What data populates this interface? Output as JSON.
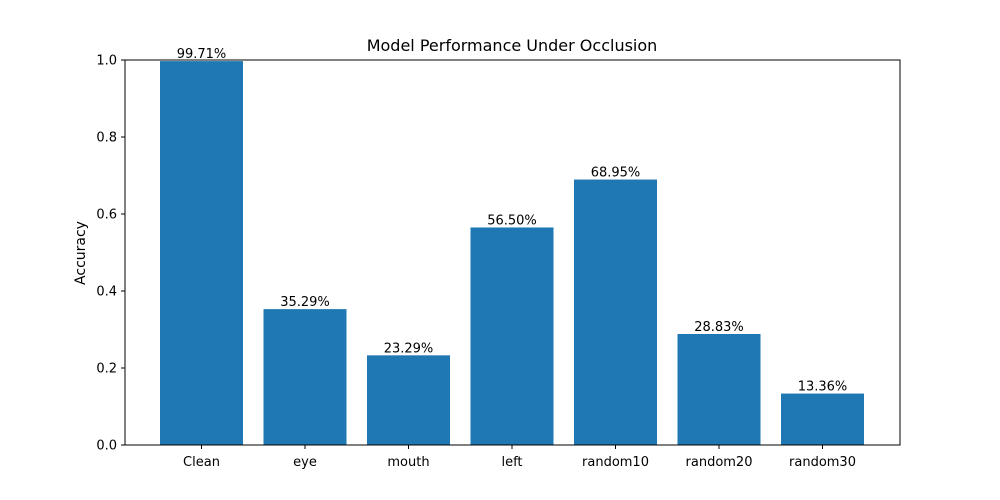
{
  "chart_data": {
    "type": "bar",
    "title": "Model Performance Under Occlusion",
    "xlabel": "",
    "ylabel": "Accuracy",
    "categories": [
      "Clean",
      "eye",
      "mouth",
      "left",
      "random10",
      "random20",
      "random30"
    ],
    "values": [
      0.9971,
      0.3529,
      0.2329,
      0.565,
      0.6895,
      0.2883,
      0.1336
    ],
    "data_labels": [
      "99.71%",
      "35.29%",
      "23.29%",
      "56.50%",
      "68.95%",
      "28.83%",
      "13.36%"
    ],
    "ylim": [
      0,
      1.0
    ],
    "yticks": [
      0.0,
      0.2,
      0.4,
      0.6,
      0.8,
      1.0
    ],
    "ytick_labels": [
      "0.0",
      "0.2",
      "0.4",
      "0.6",
      "0.8",
      "1.0"
    ],
    "bar_color": "#1f77b4",
    "grid": false,
    "legend": "none"
  }
}
